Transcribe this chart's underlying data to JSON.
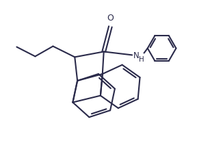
{
  "bg_color": "#ffffff",
  "bond_color": "#2a2a4a",
  "lw": 1.5,
  "figsize": [
    2.88,
    2.25
  ],
  "dpi": 100,
  "xlim": [
    0,
    10
  ],
  "ylim": [
    0,
    8
  ],
  "O_label": "O",
  "NH_label": "N\nH"
}
